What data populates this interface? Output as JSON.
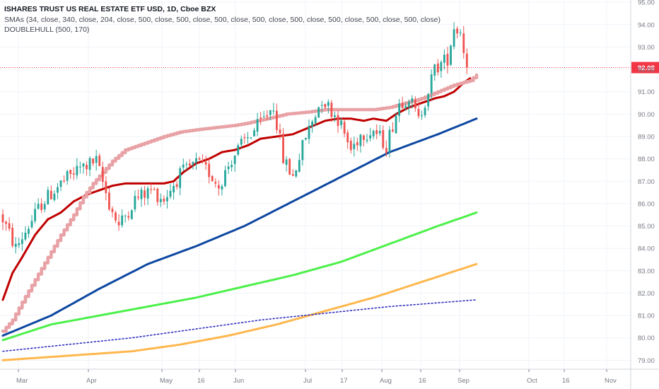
{
  "legend": {
    "title": "ISHARES TRUST US REAL ESTATE ETF USD, 1D, Cboe BZX",
    "sma_label": "SMAs (34, close, 340, close, 204, close, 500, close, 500, close, 500, close, 500, close, 500, close, 500, close, 500, close, 500, close)",
    "hull_label": "DOUBLEHULL (500, 170)"
  },
  "last_price_label": "92.08",
  "colors": {
    "up": "#26a69a",
    "down": "#ef5350",
    "sma34": "#c00000",
    "hull": "#e8a2a6",
    "blue": "#0d47a1",
    "green": "#4cf04a",
    "orange": "#ffb74d",
    "dotted": "#3030c0",
    "price_line": "#f23645"
  },
  "chart_data": {
    "type": "candlestick",
    "y_range": [
      78.6,
      95.1
    ],
    "y_ticks": [
      "79.00",
      "80.00",
      "81.00",
      "82.00",
      "83.00",
      "84.00",
      "85.00",
      "86.00",
      "87.00",
      "88.00",
      "89.00",
      "90.00",
      "91.00",
      "92.00",
      "93.00",
      "94.00",
      "95.00"
    ],
    "x_ticks": [
      "Mar",
      "Apr",
      "May",
      "16",
      "Jun",
      "Jul",
      "17",
      "Aug",
      "16",
      "Sep",
      "Oct",
      "16",
      "Nov"
    ],
    "last_price": 92.08,
    "candle_anchors": [
      [
        0,
        85.3
      ],
      [
        4,
        84.0
      ],
      [
        12,
        86.0
      ],
      [
        18,
        86.9
      ],
      [
        24,
        87.6
      ],
      [
        29,
        87.9
      ],
      [
        33,
        86.0
      ],
      [
        36,
        85.0
      ],
      [
        41,
        86.2
      ],
      [
        46,
        86.6
      ],
      [
        50,
        86.2
      ],
      [
        55,
        87.3
      ],
      [
        60,
        87.8
      ],
      [
        64,
        87.4
      ],
      [
        67,
        86.8
      ],
      [
        71,
        88.0
      ],
      [
        75,
        88.8
      ],
      [
        80,
        89.6
      ],
      [
        84,
        90.4
      ],
      [
        87,
        88.0
      ],
      [
        90,
        87.2
      ],
      [
        94,
        89.0
      ],
      [
        99,
        90.7
      ],
      [
        104,
        89.8
      ],
      [
        108,
        88.4
      ],
      [
        111,
        89.1
      ],
      [
        115,
        89.3
      ],
      [
        119,
        88.6
      ],
      [
        123,
        90.5
      ],
      [
        126,
        90.8
      ],
      [
        129,
        89.7
      ],
      [
        134,
        92.0
      ],
      [
        138,
        92.5
      ],
      [
        140,
        93.9
      ],
      [
        142,
        93.7
      ],
      [
        144,
        92.1
      ]
    ],
    "series": [
      {
        "name": "SMA 34",
        "points": [
          [
            0,
            81.7
          ],
          [
            3,
            82.9
          ],
          [
            6,
            83.6
          ],
          [
            10,
            84.6
          ],
          [
            14,
            85.3
          ],
          [
            18,
            85.6
          ],
          [
            22,
            86.1
          ],
          [
            26,
            86.4
          ],
          [
            30,
            86.6
          ],
          [
            34,
            86.8
          ],
          [
            38,
            86.9
          ],
          [
            42,
            86.9
          ],
          [
            46,
            86.9
          ],
          [
            50,
            86.9
          ],
          [
            53,
            87.0
          ],
          [
            56,
            87.4
          ],
          [
            60,
            87.8
          ],
          [
            64,
            88.0
          ],
          [
            68,
            88.3
          ],
          [
            72,
            88.4
          ],
          [
            76,
            88.6
          ],
          [
            80,
            88.9
          ],
          [
            85,
            89.0
          ],
          [
            90,
            89.1
          ],
          [
            95,
            89.4
          ],
          [
            100,
            89.7
          ],
          [
            104,
            89.8
          ],
          [
            108,
            89.8
          ],
          [
            112,
            89.7
          ],
          [
            115,
            89.8
          ],
          [
            119,
            89.7
          ],
          [
            122,
            90.0
          ],
          [
            126,
            90.3
          ],
          [
            130,
            90.5
          ],
          [
            134,
            90.7
          ],
          [
            137,
            90.8
          ],
          [
            140,
            91.0
          ],
          [
            143,
            91.4
          ],
          [
            145,
            91.6
          ]
        ]
      },
      {
        "name": "Double Hull",
        "points": [
          [
            0,
            80.3
          ],
          [
            3,
            80.8
          ],
          [
            6,
            81.6
          ],
          [
            10,
            82.6
          ],
          [
            14,
            83.6
          ],
          [
            18,
            84.6
          ],
          [
            22,
            85.5
          ],
          [
            25,
            86.3
          ],
          [
            28,
            86.9
          ],
          [
            31,
            87.4
          ],
          [
            34,
            87.9
          ],
          [
            38,
            88.4
          ],
          [
            42,
            88.6
          ],
          [
            46,
            88.8
          ],
          [
            50,
            89.0
          ],
          [
            55,
            89.2
          ],
          [
            60,
            89.3
          ],
          [
            66,
            89.4
          ],
          [
            72,
            89.5
          ],
          [
            76,
            89.6
          ],
          [
            82,
            89.8
          ],
          [
            88,
            90.0
          ],
          [
            95,
            90.1
          ],
          [
            100,
            90.2
          ],
          [
            105,
            90.2
          ],
          [
            110,
            90.2
          ],
          [
            115,
            90.2
          ],
          [
            120,
            90.3
          ],
          [
            125,
            90.5
          ],
          [
            130,
            90.7
          ],
          [
            135,
            91.0
          ],
          [
            140,
            91.3
          ],
          [
            145,
            91.5
          ],
          [
            147,
            91.75
          ]
        ]
      },
      {
        "name": "SMA blue",
        "points": [
          [
            0,
            80.1
          ],
          [
            15,
            81.0
          ],
          [
            30,
            82.2
          ],
          [
            45,
            83.3
          ],
          [
            60,
            84.1
          ],
          [
            75,
            85.0
          ],
          [
            90,
            86.1
          ],
          [
            105,
            87.2
          ],
          [
            120,
            88.3
          ],
          [
            135,
            89.1
          ],
          [
            147,
            89.8
          ]
        ]
      },
      {
        "name": "SMA green",
        "points": [
          [
            0,
            79.9
          ],
          [
            15,
            80.6
          ],
          [
            30,
            81.0
          ],
          [
            45,
            81.4
          ],
          [
            60,
            81.8
          ],
          [
            75,
            82.3
          ],
          [
            90,
            82.8
          ],
          [
            105,
            83.4
          ],
          [
            120,
            84.2
          ],
          [
            135,
            85.0
          ],
          [
            147,
            85.6
          ]
        ]
      },
      {
        "name": "SMA orange",
        "points": [
          [
            0,
            79.0
          ],
          [
            20,
            79.2
          ],
          [
            40,
            79.4
          ],
          [
            55,
            79.7
          ],
          [
            70,
            80.1
          ],
          [
            85,
            80.6
          ],
          [
            100,
            81.2
          ],
          [
            115,
            81.8
          ],
          [
            130,
            82.5
          ],
          [
            147,
            83.3
          ]
        ]
      },
      {
        "name": "SMA dotted",
        "points": [
          [
            0,
            79.4
          ],
          [
            20,
            79.7
          ],
          [
            40,
            80.0
          ],
          [
            60,
            80.4
          ],
          [
            80,
            80.8
          ],
          [
            100,
            81.1
          ],
          [
            120,
            81.4
          ],
          [
            147,
            81.7
          ]
        ]
      }
    ]
  }
}
